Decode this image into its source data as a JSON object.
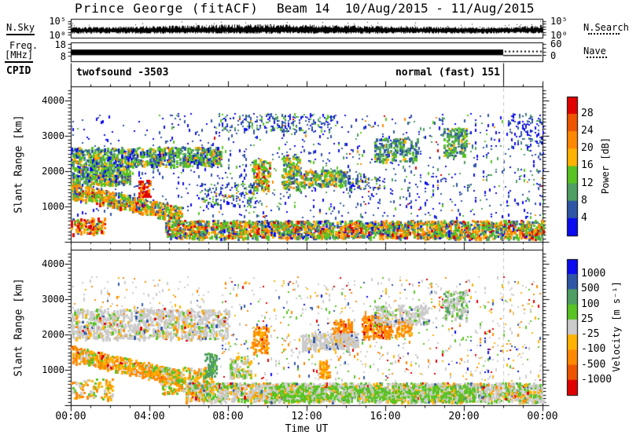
{
  "title": {
    "station": "Prince George (fitACF)",
    "beam": "Beam 14  10/Aug/2015 - 11/Aug/2015"
  },
  "palette": {
    "red": "#e00000",
    "orangered": "#ee5500",
    "orange": "#ff8800",
    "amber": "#ffb300",
    "green": "#58c322",
    "seagreen": "#4f9e63",
    "mblue": "#2f56a6",
    "blue": "#0b0bf0",
    "gray": "#cbcbcb",
    "dashed_line": "#c8c8c8",
    "axis": "#000000"
  },
  "strips": {
    "noise": {
      "label": "N.Sky",
      "left_ticks": [
        "10⁵",
        "10⁰"
      ],
      "right_ticks": [
        "10⁵",
        "10⁰"
      ],
      "right_label": "N.Search"
    },
    "freq": {
      "label_line1": "Freq.",
      "label_line2": "[MHz]",
      "left_ticks": [
        "18",
        "8"
      ],
      "right_ticks": [
        "60",
        "0"
      ],
      "right_label": "Nave"
    },
    "cpid": {
      "label": "CPID",
      "program": "twofsound -3503",
      "mode": "normal (fast) 151"
    }
  },
  "axes": {
    "x_label": "Time UT",
    "x_ticks": [
      "00:00",
      "04:00",
      "08:00",
      "12:00",
      "16:00",
      "20:00",
      "00:00"
    ],
    "y_label": "Slant Range [km]",
    "y_ticks": [
      "4000",
      "3000",
      "2000",
      "1000"
    ]
  },
  "colorbars": {
    "power": {
      "label": "Power [dB]",
      "tick_labels": [
        "28",
        "24",
        "20",
        "16",
        "12",
        "8",
        "4"
      ],
      "colors_top_to_bottom": [
        "red",
        "orangered",
        "orange",
        "amber",
        "green",
        "seagreen",
        "mblue",
        "blue"
      ]
    },
    "velocity": {
      "label": "Velocity [m s⁻¹]",
      "tick_labels": [
        "1000",
        "500",
        "100",
        "25",
        "-25",
        "-100",
        "-500",
        "-1000"
      ],
      "colors_top_to_bottom": [
        "blue",
        "mblue",
        "seagreen",
        "green",
        "gray",
        "amber",
        "orange",
        "orangered",
        "red"
      ]
    }
  },
  "chart_data": {
    "type": "heatmap",
    "title": "Prince George (fitACF)",
    "subtitle": "Beam 14 10/Aug/2015 - 11/Aug/2015",
    "x_axis": {
      "label": "Time UT",
      "range_hours": [
        0,
        24
      ],
      "major_tick_hours": 4,
      "minor_tick_hours": 1
    },
    "y_axis": {
      "label": "Slant Range [km]",
      "range_km": [
        0,
        4400
      ],
      "major_tick_km": 1000,
      "minor_tick_km": 100
    },
    "data_end_hour": 22,
    "noise_strip": {
      "scale": "log",
      "ticks": [
        "10⁵",
        "10⁰"
      ],
      "base_frac": 0.6,
      "bump_center_hour": 10,
      "rise_after_hour": 22.5
    },
    "freq_strip": {
      "band_mhz": [
        10.5,
        13.5
      ],
      "band_frac": [
        0.38,
        0.68
      ],
      "solid_until_hour": 22,
      "nave_dotted_frac": 0.44,
      "thin_line_frac": 0.67
    },
    "power_levels_db": [
      4,
      8,
      12,
      16,
      20,
      24,
      28
    ],
    "velocity_levels_ms": [
      -1000,
      -500,
      -100,
      -25,
      25,
      100,
      500,
      1000
    ],
    "panels": [
      {
        "name": "power",
        "features": [
          {
            "t": [
              0,
              7.6
            ],
            "r": [
              2150,
              2700
            ],
            "n": 850,
            "s": 3,
            "c": {
              "seagreen": 3,
              "green": 3,
              "mblue": 1.2,
              "blue": 1,
              "amber": 0.8,
              "orange": 0.6
            }
          },
          {
            "t": [
              0,
              3.0
            ],
            "r": [
              1650,
              2150
            ],
            "n": 380,
            "s": 3,
            "c": {
              "green": 3,
              "seagreen": 2,
              "mblue": 1,
              "blue": 0.6,
              "orange": 0.7,
              "amber": 0.7
            }
          },
          {
            "t": [
              0,
              5.6
            ],
            "r": [
              1250,
              1700
            ],
            "rEnd": [
              600,
              1000
            ],
            "n": 640,
            "s": 3,
            "c": {
              "green": 2,
              "amber": 1.5,
              "orange": 2.5,
              "red": 0.7,
              "seagreen": 1,
              "mblue": 0.8
            }
          },
          {
            "t": [
              3.4,
              4.0
            ],
            "r": [
              1300,
              1750
            ],
            "n": 70,
            "s": 3,
            "c": {
              "red": 3,
              "orange": 1.5,
              "amber": 0.5
            }
          },
          {
            "t": [
              0,
              1.7
            ],
            "r": [
              250,
              700
            ],
            "n": 130,
            "s": 3,
            "c": {
              "red": 1.5,
              "orange": 1.5,
              "amber": 1,
              "green": 1,
              "mblue": 0.7
            }
          },
          {
            "t": [
              4.8,
              24
            ],
            "r": [
              120,
              620
            ],
            "n": 2400,
            "s": 3,
            "c": {
              "green": 2.5,
              "orange": 1.8,
              "amber": 1.2,
              "red": 0.9,
              "mblue": 1,
              "blue": 0.6,
              "seagreen": 1.4
            }
          },
          {
            "t": [
              7,
              24
            ],
            "r": [
              700,
              3650
            ],
            "n": 850,
            "s": 2,
            "c": {
              "blue": 3.2,
              "mblue": 2.8,
              "seagreen": 0.8,
              "green": 0.7,
              "orange": 0.25,
              "red": 0.2
            }
          },
          {
            "t": [
              0,
              7
            ],
            "r": [
              800,
              3650
            ],
            "n": 220,
            "s": 2,
            "c": {
              "blue": 2.5,
              "mblue": 2.5,
              "green": 0.6
            }
          },
          {
            "t": [
              7.5,
              13.5
            ],
            "r": [
              3150,
              3650
            ],
            "n": 200,
            "s": 2,
            "c": {
              "mblue": 2.4,
              "blue": 1.6,
              "seagreen": 1,
              "green": 0.8
            }
          },
          {
            "t": [
              9.2,
              10.1
            ],
            "r": [
              1500,
              2350
            ],
            "n": 120,
            "s": 3,
            "c": {
              "green": 2,
              "amber": 1.2,
              "orange": 1,
              "red": 0.5,
              "mblue": 0.8
            }
          },
          {
            "t": [
              10.7,
              11.6
            ],
            "r": [
              1500,
              2450
            ],
            "n": 130,
            "s": 3,
            "c": {
              "green": 2.2,
              "amber": 1,
              "seagreen": 1,
              "mblue": 0.8,
              "orange": 0.5
            }
          },
          {
            "t": [
              11.7,
              14.0
            ],
            "r": [
              1600,
              2050
            ],
            "n": 200,
            "s": 3,
            "c": {
              "green": 2,
              "seagreen": 1.5,
              "mblue": 1.2,
              "amber": 0.7,
              "orange": 0.5
            }
          },
          {
            "t": [
              6.5,
              9.5
            ],
            "r": [
              1000,
              1700
            ],
            "n": 160,
            "s": 2,
            "c": {
              "mblue": 1.8,
              "blue": 1.2,
              "green": 0.8,
              "orange": 0.4
            }
          },
          {
            "t": [
              14,
              16
            ],
            "r": [
              1500,
              1900
            ],
            "n": 90,
            "s": 2,
            "c": {
              "mblue": 1.5,
              "blue": 1,
              "green": 0.8,
              "amber": 0.4
            }
          },
          {
            "t": [
              15.4,
              17.6
            ],
            "r": [
              2300,
              2950
            ],
            "n": 170,
            "s": 3,
            "c": {
              "seagreen": 1.6,
              "mblue": 1.6,
              "green": 1.4,
              "amber": 0.4
            }
          },
          {
            "t": [
              18.9,
              20.1
            ],
            "r": [
              2450,
              3250
            ],
            "n": 150,
            "s": 3,
            "c": {
              "green": 1.8,
              "seagreen": 1.4,
              "mblue": 1.2,
              "amber": 0.5
            }
          },
          {
            "t": [
              22.3,
              24
            ],
            "r": [
              2700,
              3650
            ],
            "n": 90,
            "s": 2,
            "c": {
              "blue": 2,
              "mblue": 2,
              "seagreen": 0.6
            }
          }
        ]
      },
      {
        "name": "velocity",
        "features": [
          {
            "t": [
              0,
              8
            ],
            "r": [
              1900,
              2750
            ],
            "n": 1100,
            "s": 3,
            "c": {
              "gray": 7,
              "amber": 0.8,
              "orange": 0.5,
              "green": 0.7,
              "mblue": 0.3,
              "red": 0.2
            }
          },
          {
            "t": [
              0,
              5.6
            ],
            "r": [
              1250,
              1700
            ],
            "rEnd": [
              600,
              1000
            ],
            "n": 650,
            "s": 3,
            "c": {
              "orange": 3.5,
              "amber": 2.5,
              "green": 0.8,
              "gray": 1,
              "red": 0.3
            }
          },
          {
            "t": [
              4.5,
              7.2
            ],
            "r": [
              350,
              1100
            ],
            "n": 260,
            "s": 3,
            "c": {
              "amber": 2,
              "orange": 1.8,
              "green": 1.5,
              "gray": 1
            }
          },
          {
            "t": [
              6.8,
              7.4
            ],
            "r": [
              850,
              1500
            ],
            "n": 70,
            "s": 3,
            "c": {
              "seagreen": 4,
              "green": 1
            }
          },
          {
            "t": [
              5.8,
              24
            ],
            "r": [
              120,
              650
            ],
            "n": 2300,
            "s": 3,
            "c": {
              "gray": 4.5,
              "green": 1.8,
              "amber": 1.2,
              "orange": 0.9,
              "seagreen": 0.4,
              "mblue": 0.2,
              "red": 0.2
            }
          },
          {
            "t": [
              10,
              20.5
            ],
            "r": [
              140,
              560
            ],
            "n": 800,
            "s": 3,
            "c": {
              "green": 3.5,
              "gray": 1.5,
              "amber": 0.4
            }
          },
          {
            "t": [
              7.5,
              24
            ],
            "r": [
              700,
              3650
            ],
            "n": 800,
            "s": 2,
            "c": {
              "gray": 2.5,
              "orange": 0.9,
              "red": 0.7,
              "mblue": 0.4,
              "blue": 0.3,
              "green": 0.9,
              "amber": 0.8
            }
          },
          {
            "t": [
              0,
              7
            ],
            "r": [
              2750,
              3650
            ],
            "n": 90,
            "s": 2,
            "c": {
              "gray": 2,
              "orange": 0.7,
              "amber": 0.5,
              "mblue": 0.3
            }
          },
          {
            "t": [
              9.2,
              10.0
            ],
            "r": [
              1500,
              2250
            ],
            "n": 100,
            "s": 3,
            "c": {
              "orange": 3,
              "amber": 1,
              "red": 0.4
            }
          },
          {
            "t": [
              13.3,
              14.3
            ],
            "r": [
              1700,
              2450
            ],
            "n": 130,
            "s": 3,
            "c": {
              "orange": 3.5,
              "red": 0.8,
              "amber": 0.6
            }
          },
          {
            "t": [
              14.8,
              16.3
            ],
            "r": [
              1900,
              2550
            ],
            "n": 160,
            "s": 3,
            "c": {
              "orange": 3.5,
              "red": 0.6,
              "amber": 0.8
            }
          },
          {
            "t": [
              16.5,
              17.3
            ],
            "r": [
              2000,
              2450
            ],
            "n": 70,
            "s": 3,
            "c": {
              "orange": 2.5,
              "amber": 1
            }
          },
          {
            "t": [
              11.7,
              14.6
            ],
            "r": [
              1600,
              2050
            ],
            "n": 280,
            "s": 3,
            "c": {
              "gray": 5,
              "amber": 0.5,
              "mblue": 0.3
            }
          },
          {
            "t": [
              15.4,
              18.2
            ],
            "r": [
              2300,
              2850
            ],
            "n": 170,
            "s": 3,
            "c": {
              "gray": 4,
              "green": 0.6,
              "mblue": 0.3
            }
          },
          {
            "t": [
              18.9,
              20.1
            ],
            "r": [
              2450,
              3250
            ],
            "n": 130,
            "s": 3,
            "c": {
              "gray": 3,
              "green": 1,
              "seagreen": 0.6
            }
          },
          {
            "t": [
              0,
              2.2
            ],
            "r": [
              200,
              750
            ],
            "n": 100,
            "s": 3,
            "c": {
              "orange": 1.5,
              "amber": 1.5,
              "gray": 1,
              "green": 0.5
            }
          },
          {
            "t": [
              8,
              9.2
            ],
            "r": [
              800,
              1400
            ],
            "n": 90,
            "s": 3,
            "c": {
              "gray": 2,
              "green": 1,
              "amber": 0.8
            }
          },
          {
            "t": [
              12.6,
              13.1
            ],
            "r": [
              800,
              1300
            ],
            "n": 60,
            "s": 3,
            "c": {
              "orange": 2,
              "amber": 1
            }
          }
        ]
      }
    ]
  }
}
